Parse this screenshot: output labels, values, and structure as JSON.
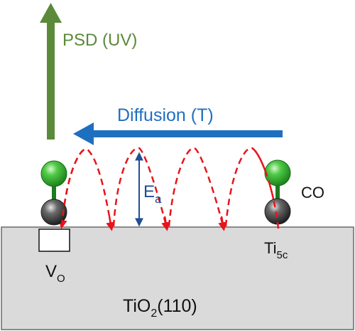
{
  "labels": {
    "psd": "PSD (UV)",
    "diffusion": "Diffusion (T)",
    "ea_main": "E",
    "ea_sub": "a",
    "co": "CO",
    "vo_main": "V",
    "vo_sub": "O",
    "ti5c_main": "Ti",
    "ti5c_sub": "5c",
    "substrate_pre": "TiO",
    "substrate_sub": "2",
    "substrate_post": "(110)"
  },
  "colors": {
    "psd_arrow": "#5B8A3A",
    "diffusion_arrow": "#1F6FC0",
    "hop_path": "#E8141B",
    "activation_arrow": "#1F4E96",
    "oxygen_atom": "#2EAA2E",
    "carbon_atom": "#3A3A3A",
    "bond": "#1E7B1E",
    "substrate": "#DADADA"
  }
}
